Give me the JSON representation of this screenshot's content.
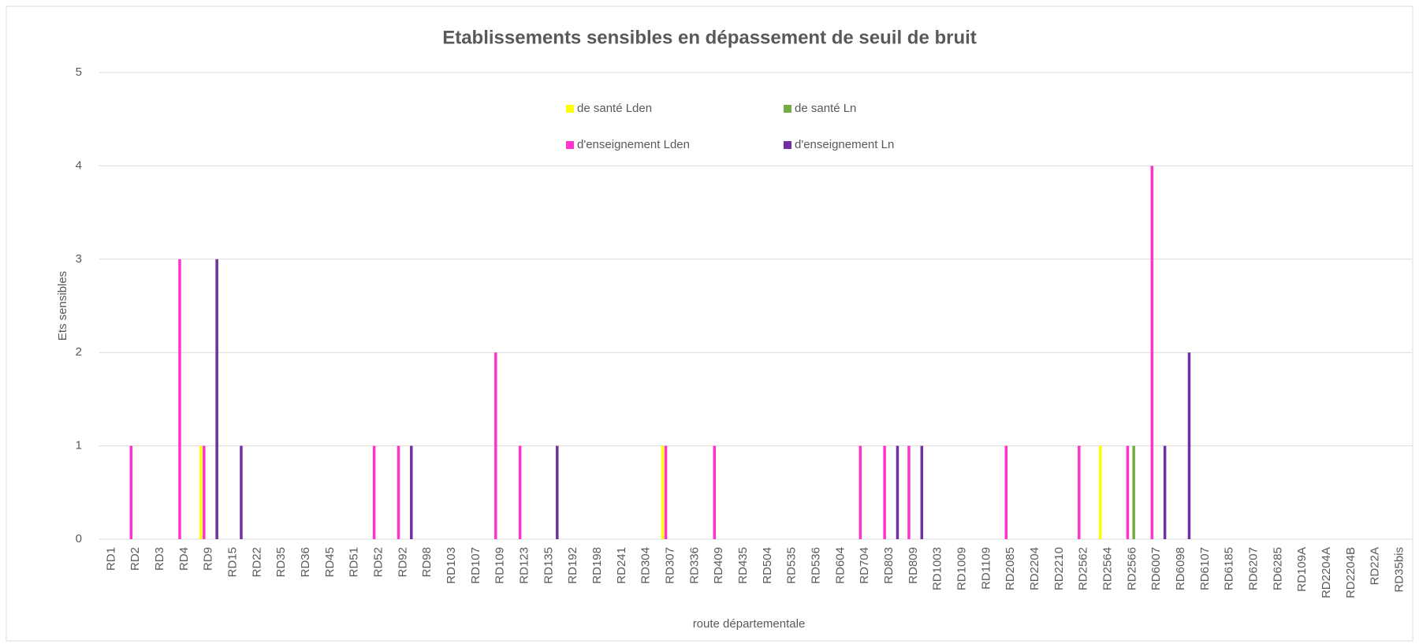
{
  "chart_data": {
    "type": "bar",
    "title": "Etablissements sensibles en dépassement de seuil de bruit",
    "x_label": "route départementale",
    "y_label": "Ets sensibles",
    "categories": [
      "RD1",
      "RD2",
      "RD3",
      "RD4",
      "RD9",
      "RD15",
      "RD22",
      "RD35",
      "RD36",
      "RD45",
      "RD51",
      "RD52",
      "RD92",
      "RD98",
      "RD103",
      "RD107",
      "RD109",
      "RD123",
      "RD135",
      "RD192",
      "RD198",
      "RD241",
      "RD304",
      "RD307",
      "RD336",
      "RD409",
      "RD435",
      "RD504",
      "RD535",
      "RD536",
      "RD604",
      "RD704",
      "RD803",
      "RD809",
      "RD1003",
      "RD1009",
      "RD1109",
      "RD2085",
      "RD2204",
      "RD2210",
      "RD2562",
      "RD2564",
      "RD2566",
      "RD6007",
      "RD6098",
      "RD6107",
      "RD6185",
      "RD6207",
      "RD6285",
      "RD109A",
      "RD2204A",
      "RD2204B",
      "RD22A",
      "RD35bis"
    ],
    "series": [
      {
        "name": "de santé Lden",
        "color": "#ffff00",
        "values": [
          0,
          0,
          0,
          0,
          1,
          0,
          0,
          0,
          0,
          0,
          0,
          0,
          0,
          0,
          0,
          0,
          0,
          0,
          0,
          0,
          0,
          0,
          0,
          1,
          0,
          0,
          0,
          0,
          0,
          0,
          0,
          0,
          0,
          0,
          0,
          0,
          0,
          0,
          0,
          0,
          0,
          1,
          0,
          0,
          0,
          0,
          0,
          0,
          0,
          0,
          0,
          0,
          0,
          0
        ]
      },
      {
        "name": "d'enseignement Lden",
        "color": "#ff33cc",
        "values": [
          0,
          1,
          0,
          3,
          1,
          0,
          0,
          0,
          0,
          0,
          0,
          1,
          1,
          0,
          0,
          0,
          2,
          1,
          0,
          0,
          0,
          0,
          0,
          1,
          0,
          1,
          0,
          0,
          0,
          0,
          0,
          1,
          1,
          1,
          0,
          0,
          0,
          1,
          0,
          0,
          1,
          0,
          1,
          4,
          0,
          0,
          0,
          0,
          0,
          0,
          0,
          0,
          0,
          0
        ]
      },
      {
        "name": "de santé Ln",
        "color": "#70ad47",
        "values": [
          0,
          0,
          0,
          0,
          0,
          0,
          0,
          0,
          0,
          0,
          0,
          0,
          0,
          0,
          0,
          0,
          0,
          0,
          0,
          0,
          0,
          0,
          0,
          0,
          0,
          0,
          0,
          0,
          0,
          0,
          0,
          0,
          0,
          0,
          0,
          0,
          0,
          0,
          0,
          0,
          0,
          0,
          1,
          0,
          0,
          0,
          0,
          0,
          0,
          0,
          0,
          0,
          0,
          0
        ]
      },
      {
        "name": "d'enseignement Ln",
        "color": "#7030a0",
        "values": [
          0,
          0,
          0,
          0,
          3,
          1,
          0,
          0,
          0,
          0,
          0,
          0,
          1,
          0,
          0,
          0,
          0,
          0,
          1,
          0,
          0,
          0,
          0,
          0,
          0,
          0,
          0,
          0,
          0,
          0,
          0,
          0,
          1,
          1,
          0,
          0,
          0,
          0,
          0,
          0,
          0,
          0,
          0,
          1,
          2,
          0,
          0,
          0,
          0,
          0,
          0,
          0,
          0,
          0
        ]
      }
    ],
    "ylim": [
      0,
      5
    ],
    "yticks": [
      0,
      1,
      2,
      3,
      4,
      5
    ],
    "grid": true,
    "legend": "top"
  }
}
